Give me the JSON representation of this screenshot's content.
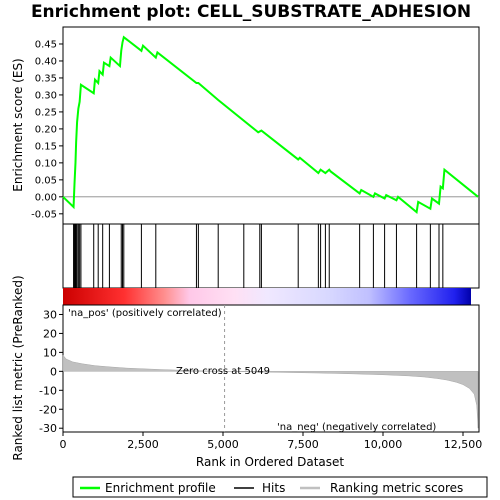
{
  "chart_data": {
    "type": "line",
    "title": "Enrichment plot: CELL_SUBSTRATE_ADHESION",
    "es_panel": {
      "ylabel": "Enrichment score (ES)",
      "ylim": [
        -0.08,
        0.5
      ],
      "yticks": [
        -0.05,
        0.0,
        0.05,
        0.1,
        0.15,
        0.2,
        0.25,
        0.3,
        0.35,
        0.4,
        0.45
      ],
      "ytick_labels": [
        "-0.05",
        "0.00",
        "0.05",
        "0.10",
        "0.15",
        "0.20",
        "0.25",
        "0.30",
        "0.35",
        "0.40",
        "0.45"
      ],
      "series": [
        {
          "name": "Enrichment profile",
          "color": "#00ff00",
          "x": [
            0,
            330,
            360,
            390,
            410,
            440,
            480,
            520,
            560,
            960,
            1000,
            1100,
            1140,
            1240,
            1280,
            1450,
            1490,
            1780,
            1820,
            1860,
            1900,
            2450,
            2500,
            2900,
            2950,
            4170,
            4230,
            4850,
            6100,
            6200,
            7350,
            7400,
            7980,
            8050,
            8200,
            8320,
            8360,
            9270,
            9320,
            9700,
            9750,
            10050,
            10100,
            10420,
            10470,
            11050,
            11100,
            11480,
            11530,
            11750,
            11800,
            11870,
            11920,
            12970
          ],
          "y": [
            0.0,
            -0.03,
            0.04,
            0.1,
            0.16,
            0.22,
            0.26,
            0.28,
            0.33,
            0.305,
            0.345,
            0.335,
            0.37,
            0.36,
            0.395,
            0.385,
            0.41,
            0.385,
            0.43,
            0.455,
            0.47,
            0.43,
            0.445,
            0.41,
            0.425,
            0.335,
            0.335,
            0.285,
            0.19,
            0.195,
            0.11,
            0.115,
            0.07,
            0.08,
            0.07,
            0.08,
            0.075,
            0.01,
            0.02,
            0.0,
            0.01,
            -0.005,
            0.005,
            -0.01,
            0.0,
            -0.045,
            -0.015,
            -0.035,
            -0.005,
            -0.02,
            0.03,
            0.025,
            0.08,
            0.0
          ]
        }
      ]
    },
    "hits": {
      "name": "Hits",
      "x": [
        330,
        360,
        390,
        410,
        440,
        480,
        520,
        560,
        960,
        1100,
        1240,
        1450,
        1820,
        1860,
        1900,
        2450,
        2900,
        4170,
        4230,
        4850,
        5650,
        6150,
        6200,
        7350,
        7980,
        8050,
        8200,
        8320,
        9270,
        9700,
        10050,
        10420,
        11050,
        11480,
        11750,
        11870
      ]
    },
    "ranking_panel": {
      "ylabel": "Ranked list metric (PreRanked)",
      "xlabel": "Rank in Ordered Dataset",
      "xlim": [
        0,
        13000
      ],
      "ylim": [
        -32,
        35
      ],
      "yticks": [
        -30,
        -20,
        -10,
        0,
        10,
        20,
        30
      ],
      "ytick_labels": [
        "-30",
        "-20",
        "-10",
        "0",
        "10",
        "20",
        "30"
      ],
      "xticks": [
        0,
        2500,
        5000,
        7500,
        10000,
        12500
      ],
      "xtick_labels": [
        "0",
        "2,500",
        "5,000",
        "7,500",
        "10,000",
        "12,500"
      ],
      "series": [
        {
          "name": "Ranking metric scores",
          "color": "#c0c0c0",
          "x": [
            0,
            100,
            300,
            600,
            1000,
            1500,
            2000,
            3000,
            4000,
            5049,
            6000,
            7000,
            8000,
            9000,
            10000,
            10800,
            11300,
            11700,
            12000,
            12300,
            12500,
            12700,
            12850,
            12930,
            12970
          ],
          "y": [
            8.5,
            6.5,
            5.0,
            4.0,
            3.0,
            2.3,
            1.7,
            1.0,
            0.4,
            0.0,
            -0.3,
            -0.6,
            -0.9,
            -1.3,
            -1.8,
            -2.4,
            -3.0,
            -3.8,
            -4.6,
            -5.8,
            -7.0,
            -9.0,
            -12.0,
            -18.0,
            -30.0
          ]
        }
      ],
      "zero_cross_label": "Zero cross at 5049",
      "zero_cross": 5049,
      "pos_label": "'na_pos' (positively correlated)",
      "neg_label": "'na_neg' (negatively correlated)",
      "pos_color": "#cc0000",
      "neg_color": "#0000cc"
    },
    "legend": {
      "placement": "bottom",
      "entries": [
        "Enrichment profile",
        "Hits",
        "Ranking metric scores"
      ],
      "colors": [
        "#00ff00",
        "#000000",
        "#c0c0c0"
      ]
    },
    "max_rank": 12970
  }
}
